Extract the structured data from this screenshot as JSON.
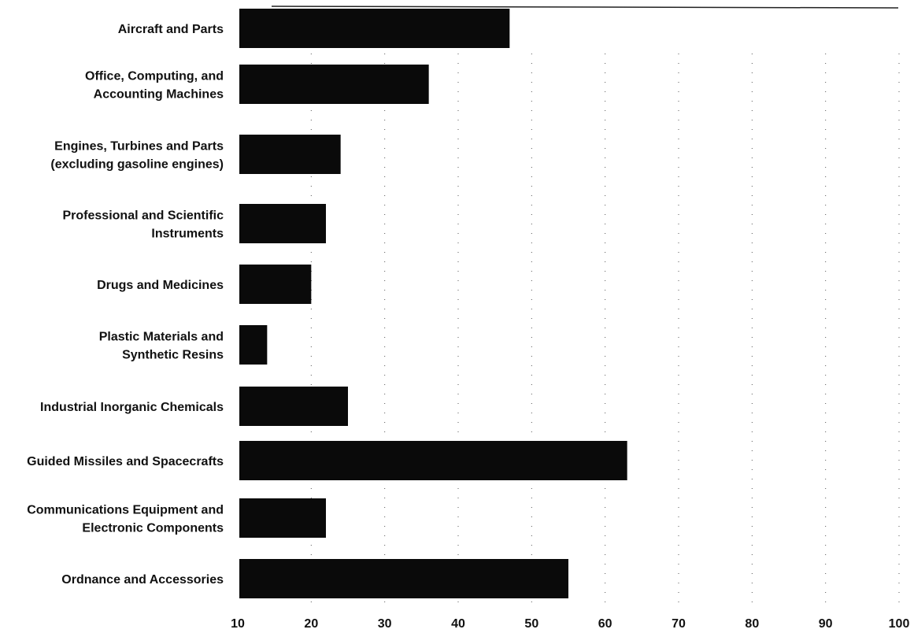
{
  "chart_data": {
    "type": "bar",
    "orientation": "horizontal",
    "categories": [
      [
        "Aircraft and Parts"
      ],
      [
        "Office, Computing, and",
        "Accounting Machines"
      ],
      [
        "Engines, Turbines and Parts",
        "(excluding gasoline engines)"
      ],
      [
        "Professional and Scientific",
        "Instruments"
      ],
      [
        "Drugs and Medicines"
      ],
      [
        "Plastic Materials and",
        "Synthetic Resins"
      ],
      [
        "Industrial Inorganic Chemicals"
      ],
      [
        "Guided Missiles and Spacecrafts"
      ],
      [
        "Communications Equipment and",
        "Electronic Components"
      ],
      [
        "Ordnance and Accessories"
      ]
    ],
    "values": [
      47,
      36,
      24,
      22,
      20,
      14,
      25,
      63,
      22,
      55
    ],
    "xlim": [
      10,
      100
    ],
    "xticks": [
      10,
      20,
      30,
      40,
      50,
      60,
      70,
      80,
      90,
      100
    ],
    "title": "",
    "xlabel": "",
    "ylabel": "",
    "grid": "vertical dotted",
    "bar_color": "#0a0a0a",
    "grid_color": "#555555"
  }
}
